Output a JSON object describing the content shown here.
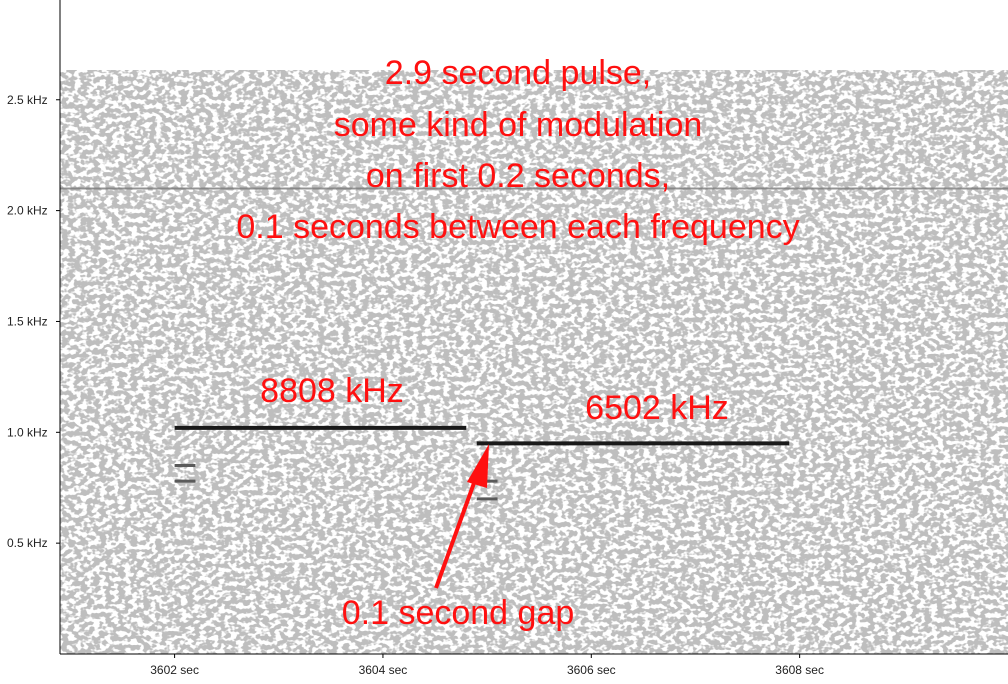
{
  "chart_data": {
    "type": "spectrogram",
    "x_unit": "sec",
    "y_unit": "kHz",
    "xlim": [
      3600.9,
      3610.0
    ],
    "ylim": [
      0,
      2.95
    ],
    "x_ticks": [
      3602,
      3604,
      3606,
      3608
    ],
    "x_tick_labels": [
      "3602 sec",
      "3604 sec",
      "3606 sec",
      "3608 sec"
    ],
    "y_ticks": [
      0.5,
      1.0,
      1.5,
      2.0,
      2.5
    ],
    "y_tick_labels": [
      "0.5 kHz",
      "1.0 kHz",
      "1.5 kHz",
      "2.0 kHz",
      "2.5 kHz"
    ],
    "tones": [
      {
        "label": "8808 kHz",
        "x_start": 3602.0,
        "x_end": 3604.8,
        "y": 1.02
      },
      {
        "label": "6502 kHz",
        "x_start": 3604.9,
        "x_end": 3607.9,
        "y": 0.95
      }
    ],
    "harmonics": [
      {
        "x_start": 3602.0,
        "x_end": 3602.2,
        "y": 0.85
      },
      {
        "x_start": 3602.0,
        "x_end": 3602.2,
        "y": 0.78
      },
      {
        "x_start": 3604.9,
        "x_end": 3605.1,
        "y": 0.78
      },
      {
        "x_start": 3604.9,
        "x_end": 3605.1,
        "y": 0.7
      }
    ],
    "background_line": {
      "y": 2.1
    },
    "annotations": {
      "title_lines": [
        "2.9 second pulse,",
        "some kind of modulation",
        "on first 0.2 seconds,",
        "0.1 seconds between each frequency"
      ],
      "tone1_label": "8808 kHz",
      "tone2_label": "6502 kHz",
      "gap_label": "0.1 second gap"
    },
    "grid": false,
    "colors": {
      "annotation": "#ff1010",
      "tone": "#1a1a1a",
      "noise": "#9a9a9a",
      "axis": "#000000"
    }
  }
}
